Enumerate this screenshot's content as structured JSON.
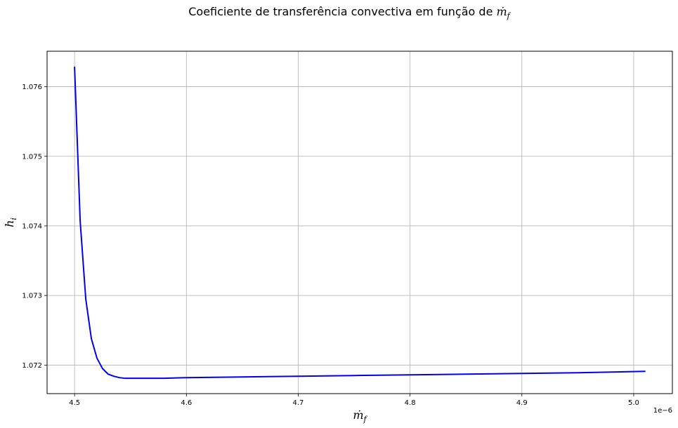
{
  "chart_data": {
    "type": "line",
    "title": "Coeficiente de transferência convectiva em função de ṁ_f",
    "title_parts": {
      "text": "Coeficiente de transferência convectiva em função de ",
      "symbol": "ṁ",
      "subscript": "f"
    },
    "xlabel_parts": {
      "symbol": "ṁ",
      "subscript": "f"
    },
    "ylabel_parts": {
      "symbol": "h",
      "subscript": "i"
    },
    "x_offset_text": "1e−6",
    "x_scale_factor": 1e-06,
    "xlim": [
      4.4754,
      5.0346
    ],
    "ylim": [
      1.07159,
      1.07651
    ],
    "x_ticks": [
      4.5,
      4.6,
      4.7,
      4.8,
      4.9,
      5.0
    ],
    "x_tick_labels": [
      "4.5",
      "4.6",
      "4.7",
      "4.8",
      "4.9",
      "5.0"
    ],
    "y_ticks": [
      1.072,
      1.073,
      1.074,
      1.075,
      1.076
    ],
    "y_tick_labels": [
      "1.072",
      "1.073",
      "1.074",
      "1.075",
      "1.076"
    ],
    "grid": true,
    "series": [
      {
        "color": "#0000ee",
        "x": [
          4.5,
          4.505,
          4.51,
          4.515,
          4.52,
          4.525,
          4.53,
          4.535,
          4.54,
          4.545,
          4.55,
          4.56,
          4.58,
          4.6,
          4.65,
          4.7,
          4.75,
          4.8,
          4.85,
          4.9,
          4.95,
          5.01
        ],
        "y": [
          1.07628,
          1.07407,
          1.07295,
          1.07238,
          1.0721,
          1.07195,
          1.07187,
          1.07184,
          1.07182,
          1.07181,
          1.07181,
          1.07181,
          1.07181,
          1.07182,
          1.07183,
          1.07184,
          1.07185,
          1.07186,
          1.07187,
          1.07188,
          1.07189,
          1.07191
        ]
      }
    ]
  }
}
